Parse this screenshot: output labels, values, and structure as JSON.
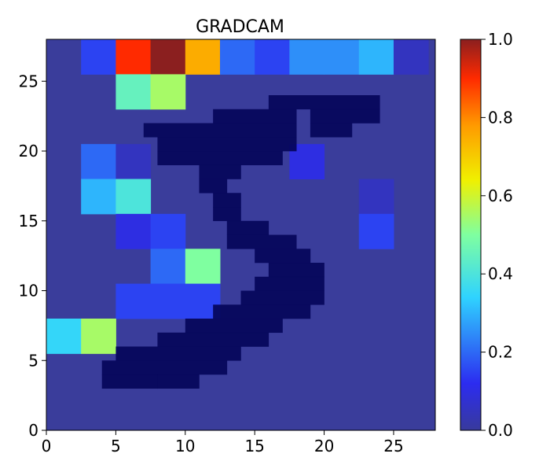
{
  "chart_data": {
    "type": "heatmap",
    "title": "GRADCAM",
    "xlabel": "",
    "ylabel": "",
    "xlim": [
      0,
      28
    ],
    "ylim": [
      0,
      28
    ],
    "x_ticks": [
      0,
      5,
      10,
      15,
      20,
      25
    ],
    "y_ticks": [
      0,
      5,
      10,
      15,
      20,
      25
    ],
    "colormap": "jet",
    "overlay_alpha": 0.75,
    "colorbar": {
      "range": [
        0,
        1
      ],
      "ticks": [
        "0.0",
        "0.2",
        "0.4",
        "0.6",
        "0.8",
        "1.0"
      ]
    },
    "heatmap_grid": {
      "cell_size": 2.5,
      "rows_top_to_bottom": [
        [
          0.0,
          0.15,
          0.9,
          1.0,
          0.75,
          0.2,
          0.15,
          0.25,
          0.25,
          0.3,
          0.05
        ],
        [
          0.0,
          0.0,
          0.45,
          0.55,
          0.0,
          0.0,
          0.0,
          0.0,
          0.0,
          0.0,
          0.0
        ],
        [
          0.0,
          0.0,
          0.0,
          0.0,
          0.0,
          0.0,
          0.0,
          0.0,
          0.0,
          0.0,
          0.0
        ],
        [
          0.0,
          0.2,
          0.05,
          0.0,
          0.0,
          0.0,
          0.0,
          0.1,
          0.0,
          0.0,
          0.0
        ],
        [
          0.0,
          0.3,
          0.4,
          0.0,
          0.0,
          0.0,
          0.0,
          0.0,
          0.0,
          0.05,
          0.0
        ],
        [
          0.0,
          0.0,
          0.1,
          0.15,
          0.0,
          0.0,
          0.0,
          0.0,
          0.0,
          0.15,
          0.0
        ],
        [
          0.0,
          0.0,
          0.0,
          0.2,
          0.5,
          0.0,
          0.0,
          0.0,
          0.0,
          0.0,
          0.0
        ],
        [
          0.0,
          0.0,
          0.15,
          0.15,
          0.15,
          0.0,
          0.0,
          0.0,
          0.0,
          0.0,
          0.0
        ],
        [
          0.35,
          0.55,
          0.0,
          0.0,
          0.0,
          0.0,
          0.0,
          0.0,
          0.0,
          0.0,
          0.0
        ],
        [
          0.0,
          0.0,
          0.0,
          0.0,
          0.0,
          0.0,
          0.0,
          0.0,
          0.0,
          0.0,
          0.0
        ],
        [
          0.0,
          0.0,
          0.0,
          0.0,
          0.0,
          0.0,
          0.0,
          0.0,
          0.0,
          0.0,
          0.0
        ],
        [
          0.0,
          0.0,
          0.0,
          0.0,
          0.0,
          0.0,
          0.0,
          0.0,
          0.0,
          0.0,
          0.0
        ]
      ]
    },
    "digit_pixels": {
      "cell_size": 1,
      "dark_spans_by_row": [
        {
          "y": 3,
          "spans": [
            [
              4,
              6
            ],
            [
              6,
              8
            ],
            [
              8,
              11
            ]
          ]
        },
        {
          "y": 4,
          "spans": [
            [
              4,
              13
            ]
          ]
        },
        {
          "y": 5,
          "spans": [
            [
              5,
              14
            ]
          ]
        },
        {
          "y": 6,
          "spans": [
            [
              8,
              16
            ]
          ]
        },
        {
          "y": 7,
          "spans": [
            [
              10,
              17
            ]
          ]
        },
        {
          "y": 8,
          "spans": [
            [
              12,
              19
            ]
          ]
        },
        {
          "y": 9,
          "spans": [
            [
              14,
              20
            ]
          ]
        },
        {
          "y": 10,
          "spans": [
            [
              15,
              20
            ]
          ]
        },
        {
          "y": 11,
          "spans": [
            [
              16,
              20
            ]
          ]
        },
        {
          "y": 12,
          "spans": [
            [
              15,
              19
            ]
          ]
        },
        {
          "y": 13,
          "spans": [
            [
              13,
              18
            ]
          ]
        },
        {
          "y": 14,
          "spans": [
            [
              13,
              16
            ]
          ]
        },
        {
          "y": 15,
          "spans": [
            [
              12,
              14
            ]
          ]
        },
        {
          "y": 16,
          "spans": [
            [
              12,
              14
            ]
          ]
        },
        {
          "y": 17,
          "spans": [
            [
              11,
              13
            ]
          ]
        },
        {
          "y": 18,
          "spans": [
            [
              11,
              14
            ]
          ]
        },
        {
          "y": 19,
          "spans": [
            [
              8,
              17
            ]
          ]
        },
        {
          "y": 20,
          "spans": [
            [
              8,
              18
            ]
          ]
        },
        {
          "y": 21,
          "spans": [
            [
              7,
              18
            ],
            [
              19,
              22
            ]
          ]
        },
        {
          "y": 22,
          "spans": [
            [
              12,
              18
            ],
            [
              19,
              24
            ]
          ]
        },
        {
          "y": 23,
          "spans": [
            [
              16,
              20
            ],
            [
              20,
              24
            ]
          ]
        }
      ]
    }
  }
}
